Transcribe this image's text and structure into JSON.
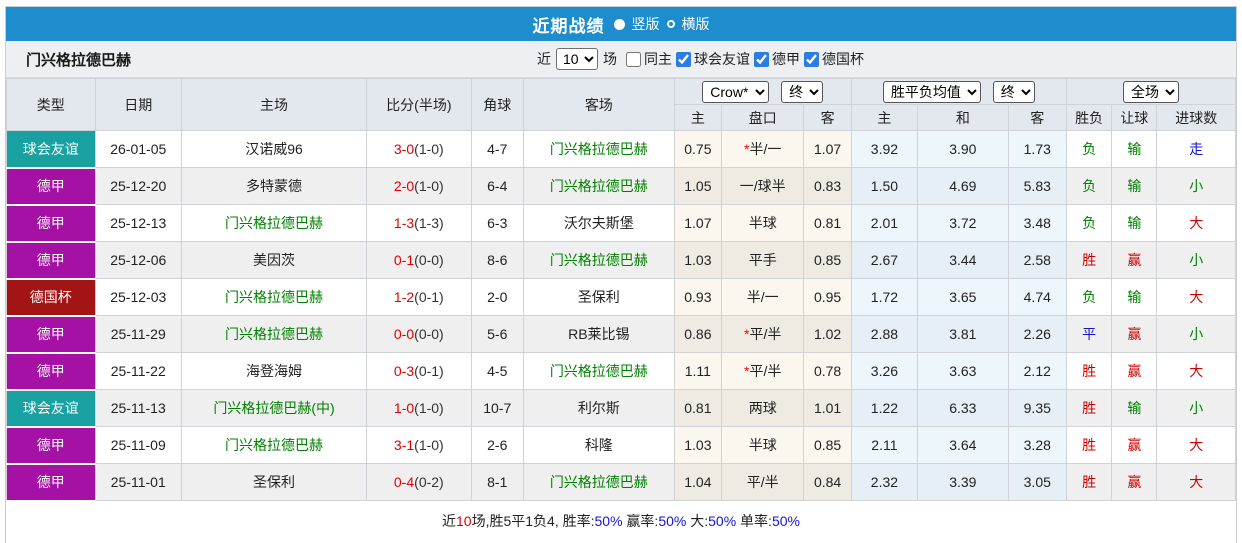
{
  "titlebar": {
    "title": "近期战绩",
    "radio_vertical": "竖版",
    "radio_horizontal": "横版",
    "selected": "竖版"
  },
  "filterbar": {
    "team_name": "门兴格拉德巴赫",
    "recent_label": "近",
    "count_value": "10",
    "matches_label": "场",
    "checkboxes": [
      {
        "label": "同主",
        "checked": false
      },
      {
        "label": "球会友谊",
        "checked": true
      },
      {
        "label": "德甲",
        "checked": true
      },
      {
        "label": "德国杯",
        "checked": true
      }
    ]
  },
  "table": {
    "headers": {
      "type": "类型",
      "date": "日期",
      "home": "主场",
      "score": "比分(半场)",
      "corner": "角球",
      "away": "客场",
      "odds_select": "Crow*",
      "odds_final_select": "终",
      "avg_select": "胜平负均值",
      "avg_final_select": "终",
      "full_select": "全场",
      "sub": [
        "主",
        "盘口",
        "客",
        "主",
        "和",
        "客",
        "胜负",
        "让球",
        "进球数"
      ]
    },
    "rows": [
      {
        "type": "球会友谊",
        "type_key": "friendly",
        "date": "26-01-05",
        "home": "汉诺威96",
        "home_team_highlight": false,
        "score": "3-0",
        "half": "(1-0)",
        "corner": "4-7",
        "away": "门兴格拉德巴赫",
        "away_team_highlight": true,
        "crow_home": "0.75",
        "handicap": "半/一",
        "handicap_star": true,
        "crow_away": "1.07",
        "avg_home": "3.92",
        "avg_draw": "3.90",
        "avg_away": "1.73",
        "wdl": "负",
        "wdl_color": "green",
        "handicap_result": "输",
        "handicap_result_color": "green",
        "goals_result": "走",
        "goals_result_color": "blue"
      },
      {
        "type": "德甲",
        "type_key": "league",
        "date": "25-12-20",
        "home": "多特蒙德",
        "home_team_highlight": false,
        "score": "2-0",
        "half": "(1-0)",
        "corner": "6-4",
        "away": "门兴格拉德巴赫",
        "away_team_highlight": true,
        "crow_home": "1.05",
        "handicap": "一/球半",
        "handicap_star": false,
        "crow_away": "0.83",
        "avg_home": "1.50",
        "avg_draw": "4.69",
        "avg_away": "5.83",
        "wdl": "负",
        "wdl_color": "green",
        "handicap_result": "输",
        "handicap_result_color": "green",
        "goals_result": "小",
        "goals_result_color": "green"
      },
      {
        "type": "德甲",
        "type_key": "league",
        "date": "25-12-13",
        "home": "门兴格拉德巴赫",
        "home_team_highlight": true,
        "score": "1-3",
        "half": "(1-3)",
        "corner": "6-3",
        "away": "沃尔夫斯堡",
        "away_team_highlight": false,
        "crow_home": "1.07",
        "handicap": "半球",
        "handicap_star": false,
        "crow_away": "0.81",
        "avg_home": "2.01",
        "avg_draw": "3.72",
        "avg_away": "3.48",
        "wdl": "负",
        "wdl_color": "green",
        "handicap_result": "输",
        "handicap_result_color": "green",
        "goals_result": "大",
        "goals_result_color": "red"
      },
      {
        "type": "德甲",
        "type_key": "league",
        "date": "25-12-06",
        "home": "美因茨",
        "home_team_highlight": false,
        "score": "0-1",
        "half": "(0-0)",
        "corner": "8-6",
        "away": "门兴格拉德巴赫",
        "away_team_highlight": true,
        "crow_home": "1.03",
        "handicap": "平手",
        "handicap_star": false,
        "crow_away": "0.85",
        "avg_home": "2.67",
        "avg_draw": "3.44",
        "avg_away": "2.58",
        "wdl": "胜",
        "wdl_color": "red",
        "handicap_result": "赢",
        "handicap_result_color": "red",
        "goals_result": "小",
        "goals_result_color": "green"
      },
      {
        "type": "德国杯",
        "type_key": "cup",
        "date": "25-12-03",
        "home": "门兴格拉德巴赫",
        "home_team_highlight": true,
        "score": "1-2",
        "half": "(0-1)",
        "corner": "2-0",
        "away": "圣保利",
        "away_team_highlight": false,
        "crow_home": "0.93",
        "handicap": "半/一",
        "handicap_star": false,
        "crow_away": "0.95",
        "avg_home": "1.72",
        "avg_draw": "3.65",
        "avg_away": "4.74",
        "wdl": "负",
        "wdl_color": "green",
        "handicap_result": "输",
        "handicap_result_color": "green",
        "goals_result": "大",
        "goals_result_color": "red"
      },
      {
        "type": "德甲",
        "type_key": "league",
        "date": "25-11-29",
        "home": "门兴格拉德巴赫",
        "home_team_highlight": true,
        "score": "0-0",
        "half": "(0-0)",
        "corner": "5-6",
        "away": "RB莱比锡",
        "away_team_highlight": false,
        "crow_home": "0.86",
        "handicap": "平/半",
        "handicap_star": true,
        "crow_away": "1.02",
        "avg_home": "2.88",
        "avg_draw": "3.81",
        "avg_away": "2.26",
        "wdl": "平",
        "wdl_color": "blue",
        "handicap_result": "赢",
        "handicap_result_color": "red",
        "goals_result": "小",
        "goals_result_color": "green"
      },
      {
        "type": "德甲",
        "type_key": "league",
        "date": "25-11-22",
        "home": "海登海姆",
        "home_team_highlight": false,
        "score": "0-3",
        "half": "(0-1)",
        "corner": "4-5",
        "away": "门兴格拉德巴赫",
        "away_team_highlight": true,
        "crow_home": "1.11",
        "handicap": "平/半",
        "handicap_star": true,
        "crow_away": "0.78",
        "avg_home": "3.26",
        "avg_draw": "3.63",
        "avg_away": "2.12",
        "wdl": "胜",
        "wdl_color": "red",
        "handicap_result": "赢",
        "handicap_result_color": "red",
        "goals_result": "大",
        "goals_result_color": "red"
      },
      {
        "type": "球会友谊",
        "type_key": "friendly",
        "date": "25-11-13",
        "home": "门兴格拉德巴赫(中)",
        "home_team_highlight": true,
        "score": "1-0",
        "half": "(1-0)",
        "corner": "10-7",
        "away": "利尔斯",
        "away_team_highlight": false,
        "crow_home": "0.81",
        "handicap": "两球",
        "handicap_star": false,
        "crow_away": "1.01",
        "avg_home": "1.22",
        "avg_draw": "6.33",
        "avg_away": "9.35",
        "wdl": "胜",
        "wdl_color": "red",
        "handicap_result": "输",
        "handicap_result_color": "green",
        "goals_result": "小",
        "goals_result_color": "green"
      },
      {
        "type": "德甲",
        "type_key": "league",
        "date": "25-11-09",
        "home": "门兴格拉德巴赫",
        "home_team_highlight": true,
        "score": "3-1",
        "half": "(1-0)",
        "corner": "2-6",
        "away": "科隆",
        "away_team_highlight": false,
        "crow_home": "1.03",
        "handicap": "半球",
        "handicap_star": false,
        "crow_away": "0.85",
        "avg_home": "2.11",
        "avg_draw": "3.64",
        "avg_away": "3.28",
        "wdl": "胜",
        "wdl_color": "red",
        "handicap_result": "赢",
        "handicap_result_color": "red",
        "goals_result": "大",
        "goals_result_color": "red"
      },
      {
        "type": "德甲",
        "type_key": "league",
        "date": "25-11-01",
        "home": "圣保利",
        "home_team_highlight": false,
        "score": "0-4",
        "half": "(0-2)",
        "corner": "8-1",
        "away": "门兴格拉德巴赫",
        "away_team_highlight": true,
        "crow_home": "1.04",
        "handicap": "平/半",
        "handicap_star": false,
        "crow_away": "0.84",
        "avg_home": "2.32",
        "avg_draw": "3.39",
        "avg_away": "3.05",
        "wdl": "胜",
        "wdl_color": "red",
        "handicap_result": "赢",
        "handicap_result_color": "red",
        "goals_result": "大",
        "goals_result_color": "red"
      }
    ]
  },
  "summary": {
    "parts": [
      {
        "text": "近",
        "color": "dark"
      },
      {
        "text": "10",
        "color": "red"
      },
      {
        "text": "场,胜5平1负4, 胜率:",
        "color": "dark"
      },
      {
        "text": "50%",
        "color": "blue"
      },
      {
        "text": " 赢率:",
        "color": "dark"
      },
      {
        "text": "50%",
        "color": "blue"
      },
      {
        "text": " 大:",
        "color": "dark"
      },
      {
        "text": "50%",
        "color": "blue"
      },
      {
        "text": " 单率:",
        "color": "dark"
      },
      {
        "text": "50%",
        "color": "blue"
      }
    ]
  },
  "colors": {
    "titlebar_bg": "#1e8dce",
    "type_colors": {
      "friendly": "#19a0a0",
      "league": "#a411a4",
      "cup": "#a31414"
    },
    "team_green": "#008000",
    "score_red": "#e00000",
    "result": {
      "red": "#cf0000",
      "green": "#008000",
      "blue": "#1515cc"
    },
    "summary_text": {
      "dark": "#222222",
      "red": "#e00000",
      "blue": "#1414dd"
    }
  }
}
